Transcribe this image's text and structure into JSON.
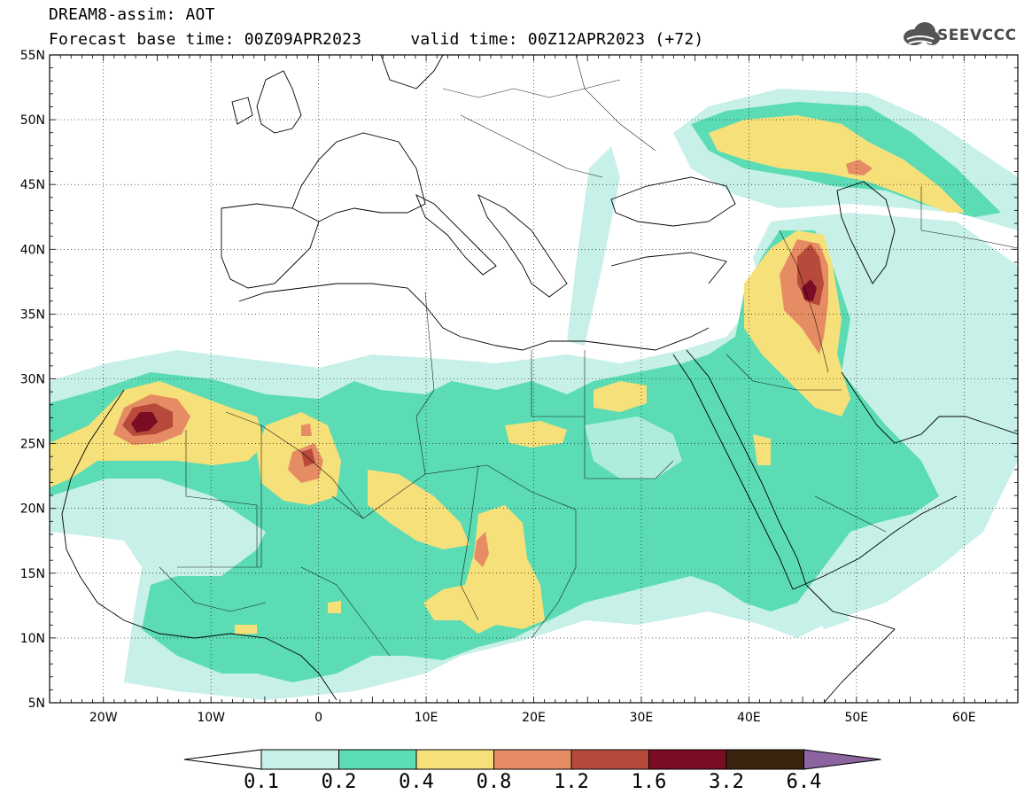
{
  "header": {
    "line1": "DREAM8-assim: AOT",
    "line2": "Forecast base time: 00Z09APR2023     valid time: 00Z12APR2023 (+72)"
  },
  "logo": {
    "text": "SEEVCCC",
    "icon": "cloud-icon"
  },
  "axes": {
    "lat_labels": [
      "55N",
      "50N",
      "45N",
      "40N",
      "35N",
      "30N",
      "25N",
      "20N",
      "15N",
      "10N",
      "5N"
    ],
    "lon_labels": [
      "20W",
      "10W",
      "0",
      "10E",
      "20E",
      "30E",
      "40E",
      "50E",
      "60E"
    ]
  },
  "colorbar": {
    "labels": [
      "0.1",
      "0.2",
      "0.4",
      "0.8",
      "1.2",
      "1.6",
      "3.2",
      "6.4"
    ],
    "colors": [
      "#ffffff",
      "#c6f0e8",
      "#5cdcb4",
      "#f6e07a",
      "#e68c64",
      "#b84a3c",
      "#7a0c24",
      "#3a2410",
      "#8c64a0"
    ]
  },
  "palette": {
    "c01": "#c6f0e8",
    "c02": "#5cdcb4",
    "c04": "#f6e07a",
    "c08": "#e68c64",
    "c12": "#b84a3c",
    "c16": "#7a0c24"
  }
}
